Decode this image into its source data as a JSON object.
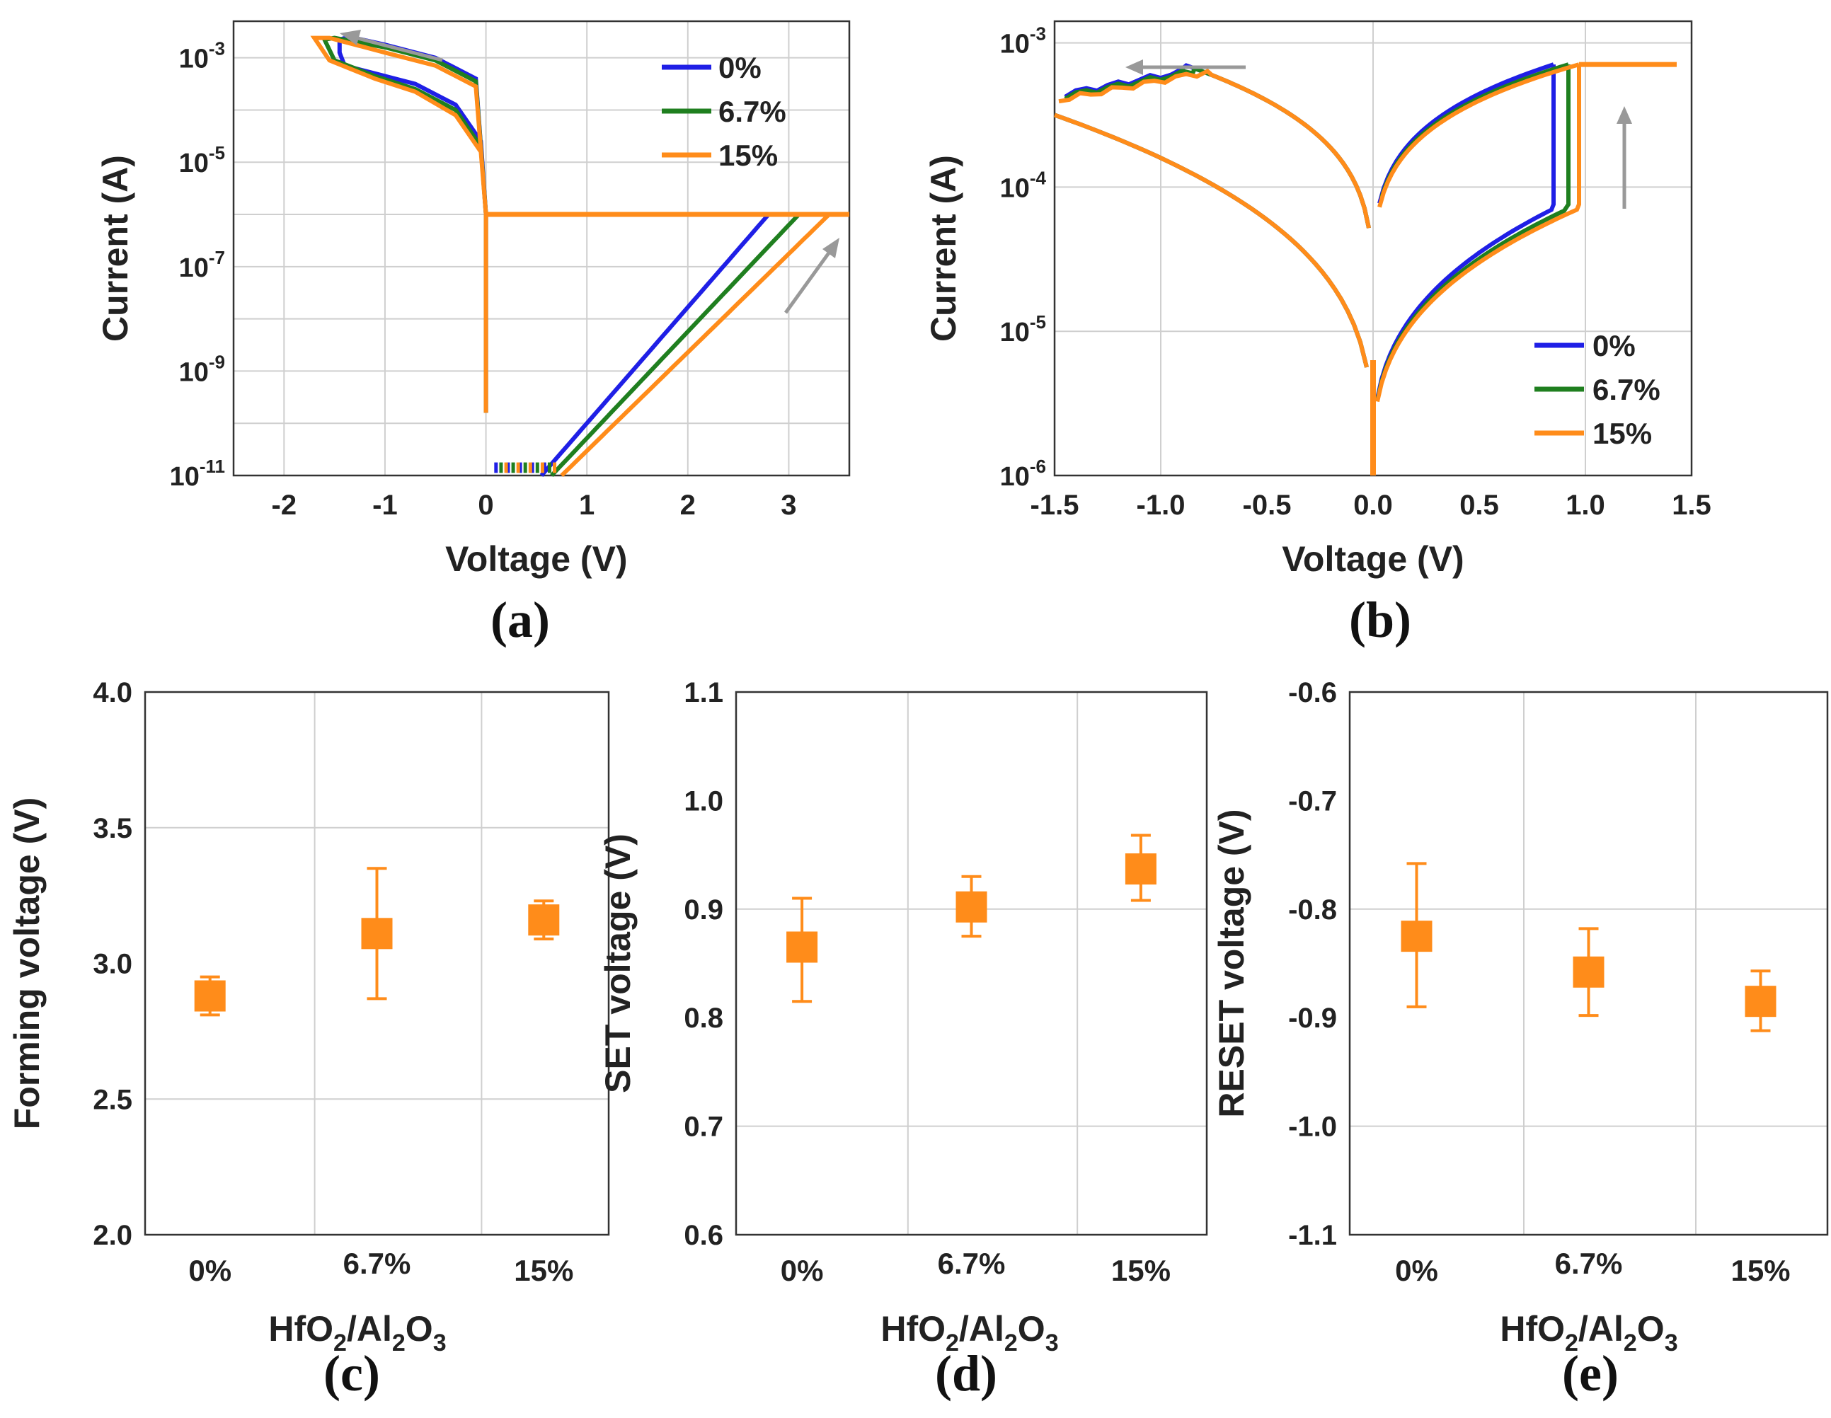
{
  "chart_data": [
    {
      "id": "a",
      "type": "line",
      "panel_label": "(a)",
      "xlabel": "Voltage (V)",
      "ylabel": "Current (A)",
      "xlim": [
        -2.5,
        3.6
      ],
      "ylim_log10": [
        -11,
        -2.3
      ],
      "yscale": "log",
      "xticks": [
        -2,
        -1,
        0,
        1,
        2,
        3
      ],
      "xtick_labels": [
        "-2",
        "-1",
        "0",
        "1",
        "2",
        "3"
      ],
      "yticks": [
        -11,
        -9,
        -7,
        -5,
        -3
      ],
      "ytick_labels": [
        {
          "base": "10",
          "exp": "-11"
        },
        {
          "base": "10",
          "exp": "-9"
        },
        {
          "base": "10",
          "exp": "-7"
        },
        {
          "base": "10",
          "exp": "-5"
        },
        {
          "base": "10",
          "exp": "-3"
        }
      ],
      "legend_position": "top-right",
      "series": [
        {
          "name": "0%",
          "color": "#1f1fe6",
          "reset_v": -1.4,
          "form_v": 2.8,
          "off_slope": 5.0,
          "reset_path": [
            [
              0,
              -6
            ],
            [
              -0.05,
              -4.6
            ],
            [
              -0.3,
              -3.9
            ],
            [
              -0.7,
              -3.5
            ],
            [
              -1.1,
              -3.3
            ],
            [
              -1.4,
              -3.15
            ],
            [
              -1.45,
              -2.9
            ],
            [
              -1.45,
              -2.65
            ],
            [
              -1.35,
              -2.6
            ],
            [
              -1.0,
              -2.75
            ],
            [
              -0.5,
              -3.0
            ],
            [
              -0.1,
              -3.4
            ],
            [
              0,
              -6
            ]
          ]
        },
        {
          "name": "6.7%",
          "color": "#1f7f1f",
          "reset_v": -1.55,
          "form_v": 3.1,
          "off_slope": 4.6,
          "reset_path": [
            [
              0,
              -6
            ],
            [
              -0.05,
              -4.7
            ],
            [
              -0.3,
              -4.0
            ],
            [
              -0.7,
              -3.6
            ],
            [
              -1.1,
              -3.35
            ],
            [
              -1.5,
              -3.05
            ],
            [
              -1.6,
              -2.65
            ],
            [
              -1.5,
              -2.62
            ],
            [
              -1.0,
              -2.8
            ],
            [
              -0.5,
              -3.05
            ],
            [
              -0.1,
              -3.45
            ],
            [
              0,
              -6
            ]
          ]
        },
        {
          "name": "15%",
          "color": "#ff8c1a",
          "reset_v": -1.7,
          "form_v": 3.4,
          "off_slope": 4.3,
          "reset_path": [
            [
              0,
              -6
            ],
            [
              -0.05,
              -4.8
            ],
            [
              -0.3,
              -4.1
            ],
            [
              -0.7,
              -3.65
            ],
            [
              -1.1,
              -3.4
            ],
            [
              -1.55,
              -3.05
            ],
            [
              -1.7,
              -2.62
            ],
            [
              -1.55,
              -2.62
            ],
            [
              -1.0,
              -2.9
            ],
            [
              -0.5,
              -3.15
            ],
            [
              -0.1,
              -3.55
            ],
            [
              0,
              -6
            ]
          ]
        }
      ],
      "compliance_log10": -6
    },
    {
      "id": "b",
      "type": "line",
      "panel_label": "(b)",
      "xlabel": "Voltage (V)",
      "ylabel": "Current (A)",
      "xlim": [
        -1.5,
        1.5
      ],
      "ylim_log10": [
        -6,
        -2.85
      ],
      "yscale": "log",
      "xticks": [
        -1.5,
        -1.0,
        -0.5,
        0.0,
        0.5,
        1.0,
        1.5
      ],
      "xtick_labels": [
        "-1.5",
        "-1.0",
        "-0.5",
        "0.0",
        "0.5",
        "1.0",
        "1.5"
      ],
      "yticks": [
        -6,
        -5,
        -4,
        -3
      ],
      "ytick_labels": [
        {
          "base": "10",
          "exp": "-6"
        },
        {
          "base": "10",
          "exp": "-5"
        },
        {
          "base": "10",
          "exp": "-4"
        },
        {
          "base": "10",
          "exp": "-3"
        }
      ],
      "legend_position": "bottom-right",
      "series": [
        {
          "name": "0%",
          "color": "#1f1fe6",
          "set_v": 0.85,
          "reset_v": -0.9
        },
        {
          "name": "6.7%",
          "color": "#1f7f1f",
          "set_v": 0.92,
          "reset_v": -0.85
        },
        {
          "name": "15%",
          "color": "#ff8c1a",
          "set_v": 0.97,
          "reset_v": -0.78
        }
      ],
      "compliance_log10": -3.15
    },
    {
      "id": "c",
      "type": "scatter",
      "panel_label": "(c)",
      "xlabel": "HfO2/Al2O3",
      "ylabel": "Forming voltage (V)",
      "categories": [
        "0%",
        "6.7%",
        "15%"
      ],
      "ylim": [
        2.0,
        4.0
      ],
      "yticks": [
        2.0,
        2.5,
        3.0,
        3.5,
        4.0
      ],
      "ytick_labels": [
        "2.0",
        "2.5",
        "3.0",
        "3.5",
        "4.0"
      ],
      "values": [
        2.88,
        3.11,
        3.16
      ],
      "err_low": [
        2.81,
        2.87,
        3.09
      ],
      "err_high": [
        2.95,
        3.35,
        3.23
      ],
      "color": "#ff8c1a"
    },
    {
      "id": "d",
      "type": "scatter",
      "panel_label": "(d)",
      "xlabel": "HfO2/Al2O3",
      "ylabel": "SET voltage (V)",
      "categories": [
        "0%",
        "6.7%",
        "15%"
      ],
      "ylim": [
        0.6,
        1.1
      ],
      "yticks": [
        0.6,
        0.7,
        0.8,
        0.9,
        1.0,
        1.1
      ],
      "ytick_labels": [
        "0.6",
        "0.7",
        "0.8",
        "0.9",
        "1.0",
        "1.1"
      ],
      "values": [
        0.865,
        0.902,
        0.937
      ],
      "err_low": [
        0.815,
        0.875,
        0.908
      ],
      "err_high": [
        0.91,
        0.93,
        0.968
      ],
      "color": "#ff8c1a"
    },
    {
      "id": "e",
      "type": "scatter",
      "panel_label": "(e)",
      "xlabel": "HfO2/Al2O3",
      "ylabel": "RESET voltage (V)",
      "categories": [
        "0%",
        "6.7%",
        "15%"
      ],
      "ylim": [
        -1.1,
        -0.6
      ],
      "yticks": [
        -1.1,
        -1.0,
        -0.9,
        -0.8,
        -0.7,
        -0.6
      ],
      "ytick_labels": [
        "-1.1",
        "-1.0",
        "-0.9",
        "-0.8",
        "-0.7",
        "-0.6"
      ],
      "values": [
        -0.825,
        -0.858,
        -0.885
      ],
      "err_low": [
        -0.89,
        -0.898,
        -0.912
      ],
      "err_high": [
        -0.758,
        -0.818,
        -0.857
      ],
      "color": "#ff8c1a"
    }
  ],
  "xlabel_parts": {
    "p1": "HfO",
    "s1": "2",
    "p2": "/Al",
    "s2": "2",
    "p3": "O",
    "s3": "3"
  }
}
